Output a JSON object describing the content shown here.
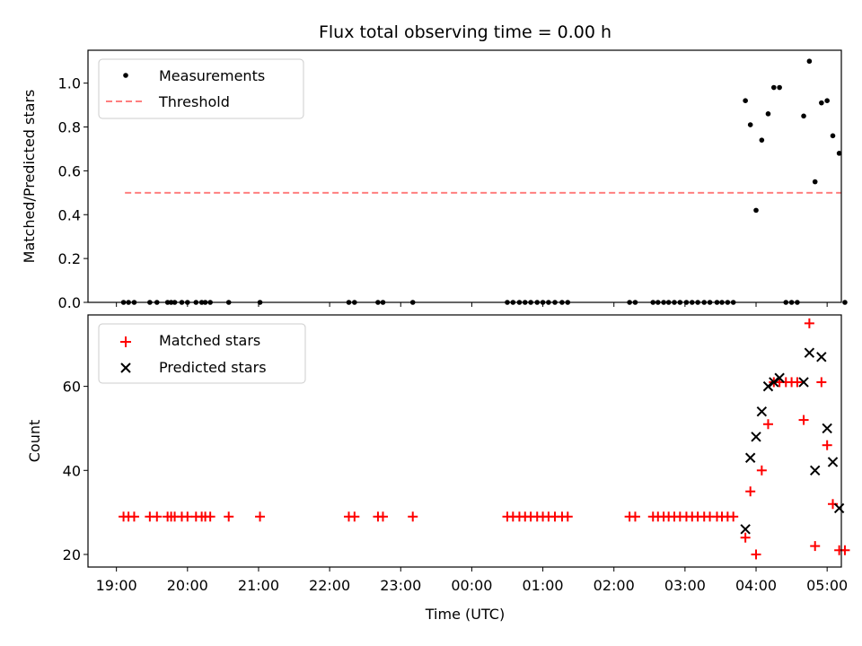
{
  "chart_data": [
    {
      "type": "scatter",
      "title": "Flux total observing time = 0.00 h",
      "ylabel": "Matched/Predicted stars",
      "xlabel": "",
      "xlim": [
        18.6,
        29.2
      ],
      "ylim": [
        0,
        1.15
      ],
      "yticks": [
        0.0,
        0.2,
        0.4,
        0.6,
        0.8,
        1.0
      ],
      "ytick_labels": [
        "0.0",
        "0.2",
        "0.4",
        "0.6",
        "0.8",
        "1.0"
      ],
      "legend": {
        "position": "top-left",
        "entries": [
          "Measurements",
          "Threshold"
        ]
      },
      "series": [
        {
          "name": "Measurements",
          "marker": "dot",
          "color": "#000000",
          "x": [
            19.1,
            19.17,
            19.25,
            19.47,
            19.57,
            19.72,
            19.77,
            19.82,
            19.92,
            20.0,
            20.12,
            20.2,
            20.25,
            20.32,
            20.58,
            21.02,
            22.27,
            22.35,
            22.68,
            22.75,
            23.17,
            24.5,
            24.58,
            24.67,
            24.75,
            24.83,
            24.92,
            25.0,
            25.08,
            25.17,
            25.27,
            25.35,
            26.22,
            26.3,
            26.55,
            26.62,
            26.7,
            26.77,
            26.85,
            26.93,
            27.02,
            27.1,
            27.18,
            27.27,
            27.35,
            27.45,
            27.52,
            27.6,
            27.68,
            27.85,
            27.92,
            28.0,
            28.08,
            28.17,
            28.25,
            28.33,
            28.42,
            28.5,
            28.58,
            28.67,
            28.75,
            28.83,
            28.92,
            29.0,
            29.08,
            29.17,
            29.25
          ],
          "y": [
            0,
            0,
            0,
            0,
            0,
            0,
            0,
            0,
            0,
            0,
            0,
            0,
            0,
            0,
            0,
            0,
            0,
            0,
            0,
            0,
            0,
            0,
            0,
            0,
            0,
            0,
            0,
            0,
            0,
            0,
            0,
            0,
            0,
            0,
            0,
            0,
            0,
            0,
            0,
            0,
            0,
            0,
            0,
            0,
            0,
            0,
            0,
            0,
            0,
            0.92,
            0.81,
            0.42,
            0.74,
            0.86,
            0.98,
            0.98,
            0,
            0,
            0,
            0.85,
            1.1,
            0.55,
            0.91,
            0.92,
            0.76,
            0.68,
            0
          ]
        },
        {
          "name": "Threshold",
          "style": "dashed",
          "color": "#ff7f7f",
          "x": [
            19.12,
            29.2
          ],
          "y": [
            0.5,
            0.5
          ]
        }
      ]
    },
    {
      "type": "scatter",
      "title": "",
      "ylabel": "Count",
      "xlabel": "Time (UTC)",
      "xlim": [
        18.6,
        29.2
      ],
      "ylim": [
        17,
        77
      ],
      "yticks": [
        20,
        40,
        60
      ],
      "ytick_labels": [
        "20",
        "40",
        "60"
      ],
      "xticks": [
        19,
        20,
        21,
        22,
        23,
        24,
        25,
        26,
        27,
        28,
        29
      ],
      "xtick_labels": [
        "19:00",
        "20:00",
        "21:00",
        "22:00",
        "23:00",
        "00:00",
        "01:00",
        "02:00",
        "03:00",
        "04:00",
        "05:00"
      ],
      "legend": {
        "position": "top-left",
        "entries": [
          "Matched stars",
          "Predicted stars"
        ]
      },
      "series": [
        {
          "name": "Matched stars",
          "marker": "plus",
          "color": "#ff0000",
          "x": [
            19.1,
            19.17,
            19.25,
            19.47,
            19.57,
            19.72,
            19.77,
            19.82,
            19.92,
            20.0,
            20.12,
            20.2,
            20.25,
            20.32,
            20.58,
            21.02,
            22.27,
            22.35,
            22.68,
            22.75,
            23.17,
            24.5,
            24.58,
            24.67,
            24.75,
            24.83,
            24.92,
            25.0,
            25.08,
            25.17,
            25.27,
            25.35,
            26.22,
            26.3,
            26.55,
            26.62,
            26.7,
            26.77,
            26.85,
            26.93,
            27.02,
            27.1,
            27.18,
            27.27,
            27.35,
            27.45,
            27.52,
            27.6,
            27.68,
            27.85,
            27.92,
            28.0,
            28.08,
            28.17,
            28.25,
            28.33,
            28.42,
            28.5,
            28.58,
            28.67,
            28.75,
            28.83,
            28.92,
            29.0,
            29.08,
            29.17,
            29.25
          ],
          "y": [
            29,
            29,
            29,
            29,
            29,
            29,
            29,
            29,
            29,
            29,
            29,
            29,
            29,
            29,
            29,
            29,
            29,
            29,
            29,
            29,
            29,
            29,
            29,
            29,
            29,
            29,
            29,
            29,
            29,
            29,
            29,
            29,
            29,
            29,
            29,
            29,
            29,
            29,
            29,
            29,
            29,
            29,
            29,
            29,
            29,
            29,
            29,
            29,
            29,
            24,
            35,
            20,
            40,
            51,
            61,
            61,
            61,
            61,
            61,
            52,
            75,
            22,
            61,
            46,
            32,
            21,
            21
          ]
        },
        {
          "name": "Predicted stars",
          "marker": "x",
          "color": "#000000",
          "x": [
            27.85,
            27.92,
            28.0,
            28.08,
            28.17,
            28.25,
            28.33,
            28.67,
            28.75,
            28.83,
            28.92,
            29.0,
            29.08,
            29.17
          ],
          "y": [
            26,
            43,
            48,
            54,
            60,
            61,
            62,
            61,
            68,
            40,
            67,
            50,
            42,
            31
          ]
        }
      ]
    }
  ]
}
